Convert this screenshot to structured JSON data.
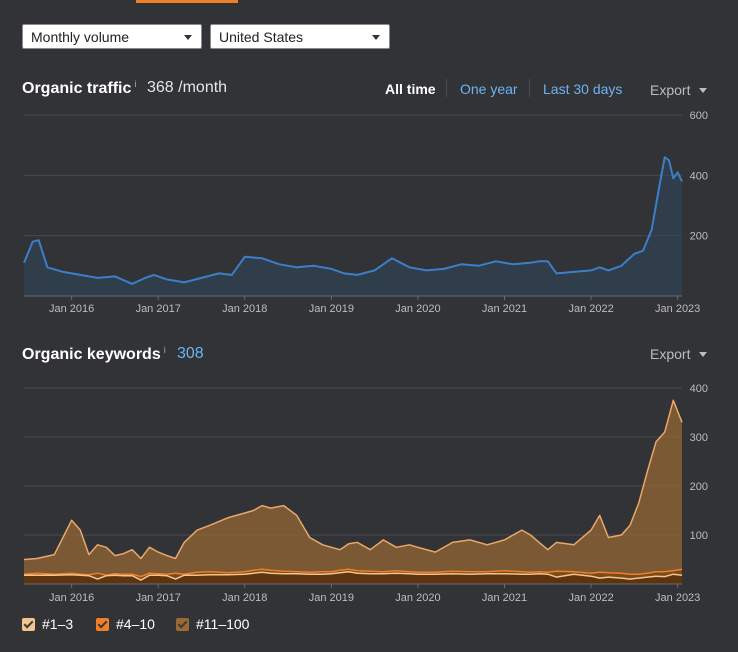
{
  "filters": {
    "volume_select": "Monthly volume",
    "country_select": "United States"
  },
  "traffic": {
    "title": "Organic traffic",
    "info": "i",
    "value": "368 /month",
    "ranges": {
      "all_time": "All time",
      "one_year": "One year",
      "last_30_days": "Last 30 days"
    },
    "export_label": "Export"
  },
  "keywords": {
    "title": "Organic keywords",
    "info": "i",
    "value": "308",
    "export_label": "Export",
    "legend": [
      {
        "label": "#1–3",
        "color": "#f5c48e"
      },
      {
        "label": "#4–10",
        "color": "#f07f2a"
      },
      {
        "label": "#11–100",
        "color": "#9b6a34"
      }
    ]
  },
  "chart_data": [
    {
      "type": "line",
      "xlabel": "",
      "ylabel": "",
      "x_ticks": [
        "Jan 2016",
        "Jan 2017",
        "Jan 2018",
        "Jan 2019",
        "Jan 2020",
        "Jan 2021",
        "Jan 2022",
        "Jan 2023"
      ],
      "y_ticks": [
        "200",
        "400",
        "600"
      ],
      "ylim": [
        0,
        600
      ],
      "grid": true,
      "color": "#3c7fc9",
      "series": [
        {
          "values": {
            "x": [
              2015.45,
              2015.55,
              2015.62,
              2015.72,
              2015.9,
              2016.1,
              2016.3,
              2016.5,
              2016.7,
              2016.85,
              2016.95,
              2017.1,
              2017.3,
              2017.5,
              2017.7,
              2017.85,
              2018.0,
              2018.2,
              2018.4,
              2018.6,
              2018.8,
              2019.0,
              2019.15,
              2019.3,
              2019.5,
              2019.7,
              2019.9,
              2020.1,
              2020.3,
              2020.5,
              2020.7,
              2020.9,
              2021.1,
              2021.3,
              2021.4,
              2021.5,
              2021.6,
              2021.8,
              2022.0,
              2022.1,
              2022.2,
              2022.35,
              2022.5,
              2022.6,
              2022.7,
              2022.78,
              2022.85,
              2022.9,
              2022.95,
              2023.0,
              2023.05
            ],
            "y": [
              110,
              180,
              185,
              95,
              80,
              70,
              60,
              65,
              40,
              60,
              70,
              55,
              45,
              60,
              75,
              70,
              130,
              125,
              105,
              95,
              100,
              90,
              75,
              70,
              85,
              125,
              95,
              85,
              90,
              105,
              100,
              115,
              105,
              110,
              115,
              115,
              75,
              80,
              85,
              95,
              85,
              100,
              140,
              150,
              220,
              350,
              460,
              450,
              390,
              410,
              380
            ]
          }
        }
      ]
    },
    {
      "type": "area",
      "xlabel": "",
      "ylabel": "",
      "x_ticks": [
        "Jan 2016",
        "Jan 2017",
        "Jan 2018",
        "Jan 2019",
        "Jan 2020",
        "Jan 2021",
        "Jan 2022",
        "Jan 2023"
      ],
      "y_ticks": [
        "100",
        "200",
        "300",
        "400"
      ],
      "ylim": [
        0,
        400
      ],
      "grid": true,
      "x": [
        2015.45,
        2015.6,
        2015.8,
        2016.0,
        2016.1,
        2016.2,
        2016.3,
        2016.4,
        2016.5,
        2016.6,
        2016.7,
        2016.8,
        2016.9,
        2017.0,
        2017.1,
        2017.2,
        2017.3,
        2017.45,
        2017.6,
        2017.8,
        2018.0,
        2018.1,
        2018.2,
        2018.3,
        2018.45,
        2018.6,
        2018.75,
        2018.9,
        2019.0,
        2019.1,
        2019.2,
        2019.3,
        2019.45,
        2019.6,
        2019.75,
        2019.9,
        2020.0,
        2020.2,
        2020.4,
        2020.6,
        2020.8,
        2021.0,
        2021.2,
        2021.3,
        2021.4,
        2021.5,
        2021.6,
        2021.8,
        2022.0,
        2022.1,
        2022.2,
        2022.35,
        2022.45,
        2022.55,
        2022.65,
        2022.75,
        2022.85,
        2022.95,
        2023.05
      ],
      "series": [
        {
          "name": "#11–100",
          "values": [
            50,
            52,
            60,
            130,
            110,
            60,
            80,
            75,
            58,
            62,
            70,
            52,
            75,
            65,
            58,
            52,
            85,
            110,
            120,
            135,
            145,
            150,
            160,
            155,
            160,
            140,
            95,
            80,
            75,
            70,
            82,
            85,
            70,
            90,
            75,
            80,
            75,
            65,
            85,
            90,
            80,
            90,
            110,
            100,
            85,
            70,
            85,
            80,
            110,
            140,
            95,
            100,
            120,
            165,
            230,
            290,
            310,
            375,
            330
          ]
        },
        {
          "name": "#4–10",
          "values": [
            20,
            22,
            20,
            22,
            20,
            19,
            22,
            18,
            21,
            20,
            20,
            15,
            22,
            21,
            20,
            22,
            20,
            24,
            25,
            23,
            25,
            28,
            30,
            28,
            26,
            25,
            24,
            25,
            25,
            28,
            30,
            27,
            26,
            25,
            27,
            25,
            24,
            24,
            26,
            25,
            25,
            27,
            25,
            24,
            25,
            24,
            26,
            25,
            22,
            24,
            23,
            22,
            20,
            20,
            22,
            25,
            25,
            27,
            30
          ]
        },
        {
          "name": "#1–3",
          "values": [
            18,
            18,
            18,
            19,
            18,
            17,
            10,
            17,
            18,
            17,
            17,
            8,
            18,
            18,
            17,
            10,
            18,
            18,
            19,
            19,
            20,
            22,
            24,
            22,
            21,
            21,
            20,
            20,
            21,
            23,
            25,
            22,
            21,
            21,
            22,
            21,
            20,
            20,
            21,
            20,
            21,
            21,
            20,
            20,
            21,
            20,
            14,
            20,
            16,
            12,
            14,
            12,
            10,
            12,
            14,
            16,
            15,
            20,
            18
          ]
        }
      ]
    }
  ]
}
